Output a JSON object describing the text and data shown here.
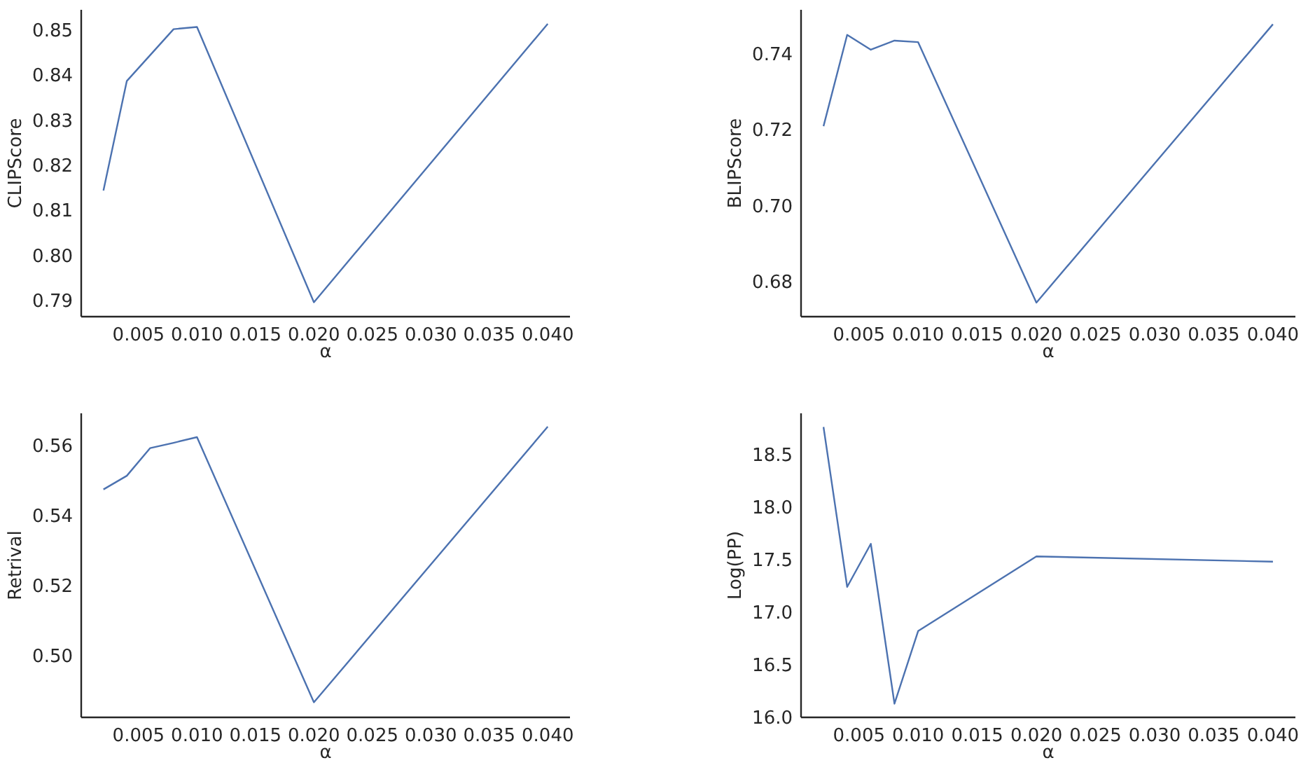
{
  "chart_data": [
    {
      "type": "line",
      "xlabel": "α",
      "ylabel": "CLIPScore",
      "x": [
        0.002,
        0.004,
        0.008,
        0.01,
        0.02,
        0.04
      ],
      "series": [
        {
          "color": "#4c72b0",
          "values": [
            0.8144,
            0.8387,
            0.8502,
            0.8507,
            0.7896,
            0.8514
          ]
        }
      ],
      "xlim": [
        0.0001,
        0.0419
      ],
      "xticks": [
        {
          "value": 0.005,
          "label": "0.005"
        },
        {
          "value": 0.01,
          "label": "0.010"
        },
        {
          "value": 0.015,
          "label": "0.015"
        },
        {
          "value": 0.02,
          "label": "0.020"
        },
        {
          "value": 0.025,
          "label": "0.025"
        },
        {
          "value": 0.03,
          "label": "0.030"
        },
        {
          "value": 0.035,
          "label": "0.035"
        },
        {
          "value": 0.04,
          "label": "0.040"
        }
      ],
      "ylim": [
        0.7864,
        0.8545
      ],
      "yticks": [
        0.79,
        {
          "value": 0.8,
          "label": "0.80"
        },
        0.81,
        0.82,
        0.83,
        0.84,
        0.85
      ],
      "grid": false,
      "line_style": "solid"
    },
    {
      "type": "line",
      "xlabel": "α",
      "ylabel": "BLIPScore",
      "x": [
        0.002,
        0.004,
        0.006,
        0.008,
        0.01,
        0.02,
        0.04
      ],
      "series": [
        {
          "color": "#4c72b0",
          "values": [
            0.7209,
            0.7449,
            0.741,
            0.7434,
            0.743,
            0.6745,
            0.7477
          ]
        }
      ],
      "xlim": [
        0.0001,
        0.0419
      ],
      "xticks": [
        {
          "value": 0.005,
          "label": "0.005"
        },
        {
          "value": 0.01,
          "label": "0.010"
        },
        {
          "value": 0.015,
          "label": "0.015"
        },
        {
          "value": 0.02,
          "label": "0.020"
        },
        {
          "value": 0.025,
          "label": "0.025"
        },
        {
          "value": 0.03,
          "label": "0.030"
        },
        {
          "value": 0.035,
          "label": "0.035"
        },
        {
          "value": 0.04,
          "label": "0.040"
        }
      ],
      "ylim": [
        0.6708,
        0.7515
      ],
      "yticks": [
        0.68,
        {
          "value": 0.7,
          "label": "0.70"
        },
        0.72,
        0.74
      ],
      "grid": false,
      "line_style": "solid"
    },
    {
      "type": "line",
      "xlabel": "α",
      "ylabel": "Retrival",
      "x": [
        0.002,
        0.004,
        0.006,
        0.008,
        0.01,
        0.02,
        0.04
      ],
      "series": [
        {
          "color": "#4c72b0",
          "values": [
            0.5474,
            0.5513,
            0.5592,
            0.5607,
            0.5623,
            0.4867,
            0.5653
          ]
        }
      ],
      "xlim": [
        0.0001,
        0.0419
      ],
      "xticks": [
        {
          "value": 0.005,
          "label": "0.005"
        },
        {
          "value": 0.01,
          "label": "0.010"
        },
        {
          "value": 0.015,
          "label": "0.015"
        },
        {
          "value": 0.02,
          "label": "0.020"
        },
        {
          "value": 0.025,
          "label": "0.025"
        },
        {
          "value": 0.03,
          "label": "0.030"
        },
        {
          "value": 0.035,
          "label": "0.035"
        },
        {
          "value": 0.04,
          "label": "0.040"
        }
      ],
      "ylim": [
        0.4824,
        0.5691
      ],
      "yticks": [
        {
          "value": 0.5,
          "label": "0.50"
        },
        0.52,
        0.54,
        0.56
      ],
      "grid": false,
      "line_style": "solid"
    },
    {
      "type": "line",
      "xlabel": "α",
      "ylabel": "Log(PP)",
      "x": [
        0.002,
        0.004,
        0.006,
        0.008,
        0.01,
        0.02,
        0.04
      ],
      "series": [
        {
          "color": "#4c72b0",
          "values": [
            18.76,
            17.24,
            17.65,
            16.13,
            16.82,
            17.53,
            17.48
          ]
        }
      ],
      "xlim": [
        0.0001,
        0.0419
      ],
      "xticks": [
        {
          "value": 0.005,
          "label": "0.005"
        },
        {
          "value": 0.01,
          "label": "0.010"
        },
        {
          "value": 0.015,
          "label": "0.015"
        },
        {
          "value": 0.02,
          "label": "0.020"
        },
        {
          "value": 0.025,
          "label": "0.025"
        },
        {
          "value": 0.03,
          "label": "0.030"
        },
        {
          "value": 0.035,
          "label": "0.035"
        },
        {
          "value": 0.04,
          "label": "0.040"
        }
      ],
      "ylim": [
        16.0,
        18.89
      ],
      "yticks": [
        {
          "value": 16.0,
          "label": "16.0"
        },
        16.5,
        {
          "value": 17.0,
          "label": "17.0"
        },
        17.5,
        {
          "value": 18.0,
          "label": "18.0"
        },
        18.5
      ],
      "grid": false,
      "line_style": "solid"
    }
  ]
}
